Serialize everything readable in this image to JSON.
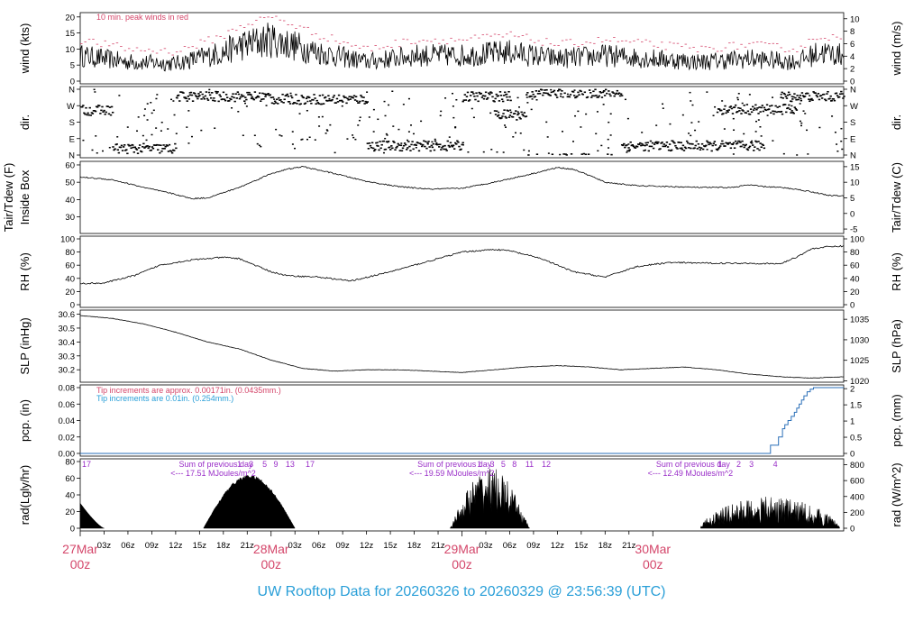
{
  "colors": {
    "peak": "#d4466a",
    "tip_in": "#d4466a",
    "tip_mm": "#2a9fd8",
    "solar_sum": "#9a2fc8",
    "footer": "#2a9fd8",
    "line": "#000000",
    "pcp_line": "#2a6fb8"
  },
  "footer": {
    "text": "UW Rooftop Data for 20260326  to  20260329 @ 23:56:39  (UTC)"
  },
  "chart_data": [
    {
      "panel": "wind",
      "type": "line",
      "ylabel_left": "wind (kts)",
      "ylabel_right": "wind (m/s)",
      "ylim": [
        0,
        20.5
      ],
      "ticks_left": [
        0,
        5,
        10,
        15,
        20
      ],
      "ticks_right": [
        0,
        2,
        4,
        6,
        8,
        10
      ],
      "right_units_factor": 0.5144,
      "annotation": "10 min. peak winds in red",
      "x_hours": [
        0,
        6,
        12,
        18,
        20,
        24,
        30,
        34,
        36,
        42,
        48,
        54,
        60,
        66,
        72,
        78,
        84,
        90,
        93,
        96
      ],
      "mean_kts": [
        8,
        6,
        5.5,
        9,
        11,
        13,
        9,
        7,
        6,
        8,
        8,
        9,
        7,
        8,
        7,
        6,
        7,
        6,
        9,
        8
      ],
      "series": [
        {
          "name": "10 min. peak winds",
          "color": "red"
        }
      ]
    },
    {
      "panel": "dir",
      "type": "scatter",
      "ylabel_left": "dir.",
      "ylabel_right": "dir.",
      "ylim": [
        0,
        360
      ],
      "tick_labels": [
        "N",
        "E",
        "S",
        "W",
        "N"
      ],
      "tick_values": [
        0,
        90,
        180,
        270,
        360
      ],
      "segments": [
        {
          "h0": 0,
          "h1": 4,
          "dir": 245
        },
        {
          "h0": 4,
          "h1": 12,
          "dir": 35
        },
        {
          "h0": 12,
          "h1": 24,
          "dir": 320
        },
        {
          "h0": 24,
          "h1": 36,
          "dir": 305
        },
        {
          "h0": 36,
          "h1": 48,
          "dir": 50
        },
        {
          "h0": 48,
          "h1": 54,
          "dir": 320
        },
        {
          "h0": 52,
          "h1": 56,
          "dir": 220
        },
        {
          "h0": 56,
          "h1": 68,
          "dir": 340
        },
        {
          "h0": 68,
          "h1": 86,
          "dir": 50
        },
        {
          "h0": 80,
          "h1": 90,
          "dir": 250
        },
        {
          "h0": 88,
          "h1": 96,
          "dir": 320
        }
      ]
    },
    {
      "panel": "temp",
      "type": "line",
      "ylabel_left": "Tair/Tdew (F)",
      "ylabel_left2": "Inside Box",
      "ylabel_right": "Tair/Tdew (C)",
      "ylim": [
        22,
        60.5
      ],
      "ticks_left": [
        30,
        40,
        50,
        60
      ],
      "ticks_right": [
        -5,
        0,
        5,
        10,
        15
      ],
      "x_hours": [
        0,
        4,
        8,
        12,
        14,
        16,
        20,
        24,
        26,
        28,
        32,
        36,
        40,
        44,
        48,
        52,
        56,
        60,
        62,
        64,
        66,
        70,
        74,
        78,
        82,
        84,
        86,
        88,
        90,
        92,
        94,
        96
      ],
      "values": [
        53,
        51.5,
        47,
        43,
        40.5,
        41,
        47,
        55,
        57.5,
        59,
        55,
        50.5,
        47.5,
        46,
        46.5,
        50,
        54,
        58.5,
        57.5,
        54,
        50,
        48,
        47.5,
        47,
        47,
        48.5,
        47.5,
        47,
        46,
        44.5,
        42.5,
        42
      ]
    },
    {
      "panel": "rh",
      "type": "line",
      "ylabel_left": "RH (%)",
      "ylabel_right": "RH (%)",
      "ylim": [
        0,
        100
      ],
      "ticks_left": [
        0,
        20,
        40,
        60,
        80,
        100
      ],
      "ticks_right": [
        0,
        20,
        40,
        60,
        80,
        100
      ],
      "x_hours": [
        0,
        3,
        7,
        10,
        14,
        18,
        20,
        24,
        26,
        30,
        34,
        38,
        42,
        48,
        52,
        54,
        58,
        62,
        66,
        70,
        74,
        80,
        84,
        88,
        90,
        92,
        94,
        96
      ],
      "values": [
        32,
        33,
        45,
        60,
        68,
        72,
        70,
        50,
        44,
        42,
        36,
        47,
        60,
        80,
        84,
        82,
        70,
        50,
        42,
        58,
        64,
        63,
        63,
        62,
        72,
        85,
        88,
        89
      ]
    },
    {
      "panel": "slp",
      "type": "line",
      "ylabel_left": "SLP (inHg)",
      "ylabel_right": "SLP (hPa)",
      "ylim": [
        30.13,
        30.61
      ],
      "ticks_left": [
        30.2,
        30.3,
        30.4,
        30.5,
        30.6
      ],
      "ticks_right": [
        1020,
        1025,
        1030,
        1035
      ],
      "x_hours": [
        0,
        4,
        8,
        12,
        16,
        20,
        24,
        28,
        32,
        36,
        40,
        44,
        48,
        52,
        56,
        60,
        64,
        68,
        72,
        76,
        80,
        84,
        88,
        92,
        96
      ],
      "values": [
        30.59,
        30.57,
        30.53,
        30.47,
        30.4,
        30.35,
        30.27,
        30.21,
        30.19,
        30.2,
        30.2,
        30.19,
        30.18,
        30.2,
        30.22,
        30.23,
        30.22,
        30.2,
        30.21,
        30.22,
        30.2,
        30.17,
        30.15,
        30.14,
        30.15
      ]
    },
    {
      "panel": "pcp",
      "type": "line",
      "ylabel_left": "pcp. (in)",
      "ylabel_right": "pcp. (mm)",
      "ylim": [
        0,
        0.08
      ],
      "ticks_left": [
        "0.00",
        "0.02",
        "0.04",
        "0.06",
        "0.08"
      ],
      "ticks_right": [
        "0",
        "0.5",
        "1",
        "1.5",
        "2"
      ],
      "note_in": "Tip increments are approx. 0.00171in. (0.0435mm.)",
      "note_mm": "Tip increments are 0.01in. (0.254mm.)",
      "x_hours": [
        0,
        86,
        86.8,
        87.8,
        88.3,
        88.6,
        89.0,
        89.4,
        89.8,
        90.1,
        90.4,
        90.7,
        91.0,
        91.4,
        91.8,
        92.2,
        96
      ],
      "values": [
        0,
        0,
        0.01,
        0.02,
        0.03,
        0.035,
        0.04,
        0.045,
        0.05,
        0.055,
        0.06,
        0.065,
        0.07,
        0.075,
        0.078,
        0.08,
        0.08
      ]
    },
    {
      "panel": "rad",
      "type": "area",
      "ylabel_left": "rad(Lgly/hr)",
      "ylabel_right": "rad (W/m^2)",
      "ylim": [
        0,
        80
      ],
      "ticks_left": [
        0,
        20,
        40,
        60,
        80
      ],
      "ticks_right": [
        0,
        200,
        400,
        600,
        800
      ],
      "day_sums": [
        {
          "x_hour": 14,
          "line1": "Sum of previous day",
          "line2": "<--- 17.51 MJoules/m^2"
        },
        {
          "x_hour": 44,
          "line1": "Sum of previous day",
          "line2": "<--- 19.59 MJoules/m^2"
        },
        {
          "x_hour": 74,
          "line1": "Sum of previous day",
          "line2": "<--- 12.49 MJoules/m^2"
        }
      ],
      "hour_marks": [
        {
          "x_hour": 0.8,
          "t": "17"
        },
        {
          "x_hour": 20,
          "t": "1"
        },
        {
          "x_hour": 21.5,
          "t": "3"
        },
        {
          "x_hour": 23.2,
          "t": "5"
        },
        {
          "x_hour": 24.6,
          "t": "9"
        },
        {
          "x_hour": 26.4,
          "t": "13"
        },
        {
          "x_hour": 28.9,
          "t": "17"
        },
        {
          "x_hour": 50.2,
          "t": "1"
        },
        {
          "x_hour": 51.8,
          "t": "3"
        },
        {
          "x_hour": 53.2,
          "t": "5"
        },
        {
          "x_hour": 54.6,
          "t": "8"
        },
        {
          "x_hour": 56.5,
          "t": "11"
        },
        {
          "x_hour": 58.6,
          "t": "12"
        },
        {
          "x_hour": 80.4,
          "t": "1"
        },
        {
          "x_hour": 82.8,
          "t": "2"
        },
        {
          "x_hour": 84.4,
          "t": "3"
        },
        {
          "x_hour": 87.4,
          "t": "4"
        }
      ],
      "days": [
        {
          "h0": 0,
          "h1": 3,
          "peak": 30,
          "shape": "decay"
        },
        {
          "h0": 15.5,
          "h1": 27,
          "peak": 64,
          "shape": "bell"
        },
        {
          "h0": 46.5,
          "h1": 56.5,
          "peak": 70,
          "shape": "spiky"
        },
        {
          "h0": 78,
          "h1": 95.5,
          "peak": 45,
          "shape": "spiky_low"
        }
      ]
    }
  ],
  "x_axis": {
    "hour_ticks": [
      "03z",
      "06z",
      "09z",
      "12z",
      "15z",
      "18z",
      "21z"
    ],
    "days": [
      {
        "label": "27Mar",
        "sub": "00z",
        "x_hour": 0
      },
      {
        "label": "28Mar",
        "sub": "00z",
        "x_hour": 24
      },
      {
        "label": "29Mar",
        "sub": "00z",
        "x_hour": 48
      },
      {
        "label": "30Mar",
        "sub": "00z",
        "x_hour": 72
      }
    ]
  }
}
